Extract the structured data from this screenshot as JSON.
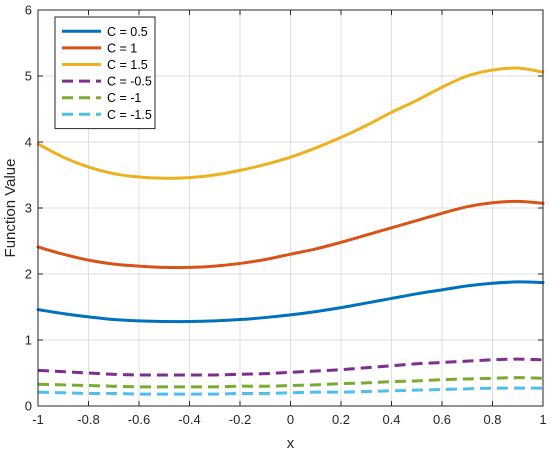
{
  "chart_data": {
    "type": "line",
    "xlabel": "x",
    "ylabel": "Function Value",
    "xlim": [
      -1,
      1
    ],
    "ylim": [
      0,
      6
    ],
    "xticks": [
      -1,
      -0.8,
      -0.6,
      -0.4,
      -0.2,
      0,
      0.2,
      0.4,
      0.6,
      0.8,
      1
    ],
    "xtick_labels": [
      "-1",
      "-0.8",
      "-0.6",
      "-0.4",
      "-0.2",
      "0",
      "0.2",
      "0.4",
      "0.6",
      "0.8",
      "1"
    ],
    "yticks": [
      0,
      1,
      2,
      3,
      4,
      5,
      6
    ],
    "ytick_labels": [
      "0",
      "1",
      "2",
      "3",
      "4",
      "5",
      "6"
    ],
    "grid": true,
    "legend_position": "top-left",
    "x": [
      -1,
      -0.9,
      -0.8,
      -0.7,
      -0.6,
      -0.5,
      -0.4,
      -0.3,
      -0.2,
      -0.1,
      0,
      0.1,
      0.2,
      0.3,
      0.4,
      0.5,
      0.6,
      0.7,
      0.8,
      0.9,
      1
    ],
    "series": [
      {
        "name": "C = 0.5",
        "color": "#0072BD",
        "dash": "solid",
        "values": [
          1.46,
          1.4,
          1.35,
          1.31,
          1.29,
          1.28,
          1.28,
          1.29,
          1.31,
          1.34,
          1.38,
          1.43,
          1.49,
          1.56,
          1.63,
          1.7,
          1.76,
          1.82,
          1.86,
          1.88,
          1.87
        ]
      },
      {
        "name": "C = 1",
        "color": "#D95319",
        "dash": "solid",
        "values": [
          2.41,
          2.3,
          2.21,
          2.15,
          2.12,
          2.1,
          2.1,
          2.12,
          2.16,
          2.22,
          2.3,
          2.38,
          2.48,
          2.59,
          2.7,
          2.81,
          2.92,
          3.02,
          3.08,
          3.1,
          3.07
        ]
      },
      {
        "name": "C = 1.5",
        "color": "#EDB120",
        "dash": "solid",
        "values": [
          3.97,
          3.77,
          3.62,
          3.52,
          3.47,
          3.45,
          3.46,
          3.5,
          3.57,
          3.66,
          3.77,
          3.91,
          4.07,
          4.25,
          4.45,
          4.63,
          4.83,
          5.0,
          5.09,
          5.12,
          5.06
        ]
      },
      {
        "name": "C = -0.5",
        "color": "#7E2F8E",
        "dash": "dashed",
        "values": [
          0.54,
          0.52,
          0.5,
          0.48,
          0.47,
          0.47,
          0.47,
          0.47,
          0.48,
          0.49,
          0.51,
          0.53,
          0.55,
          0.58,
          0.61,
          0.64,
          0.66,
          0.68,
          0.7,
          0.71,
          0.7
        ]
      },
      {
        "name": "C = -1",
        "color": "#77AC30",
        "dash": "dashed",
        "values": [
          0.33,
          0.32,
          0.31,
          0.3,
          0.29,
          0.29,
          0.29,
          0.29,
          0.3,
          0.3,
          0.31,
          0.32,
          0.34,
          0.35,
          0.37,
          0.38,
          0.4,
          0.41,
          0.42,
          0.43,
          0.42
        ]
      },
      {
        "name": "C = -1.5",
        "color": "#4DBEEE",
        "dash": "dashed",
        "values": [
          0.21,
          0.2,
          0.19,
          0.19,
          0.18,
          0.18,
          0.18,
          0.18,
          0.19,
          0.19,
          0.2,
          0.21,
          0.21,
          0.22,
          0.23,
          0.24,
          0.25,
          0.26,
          0.27,
          0.27,
          0.27
        ]
      }
    ]
  }
}
